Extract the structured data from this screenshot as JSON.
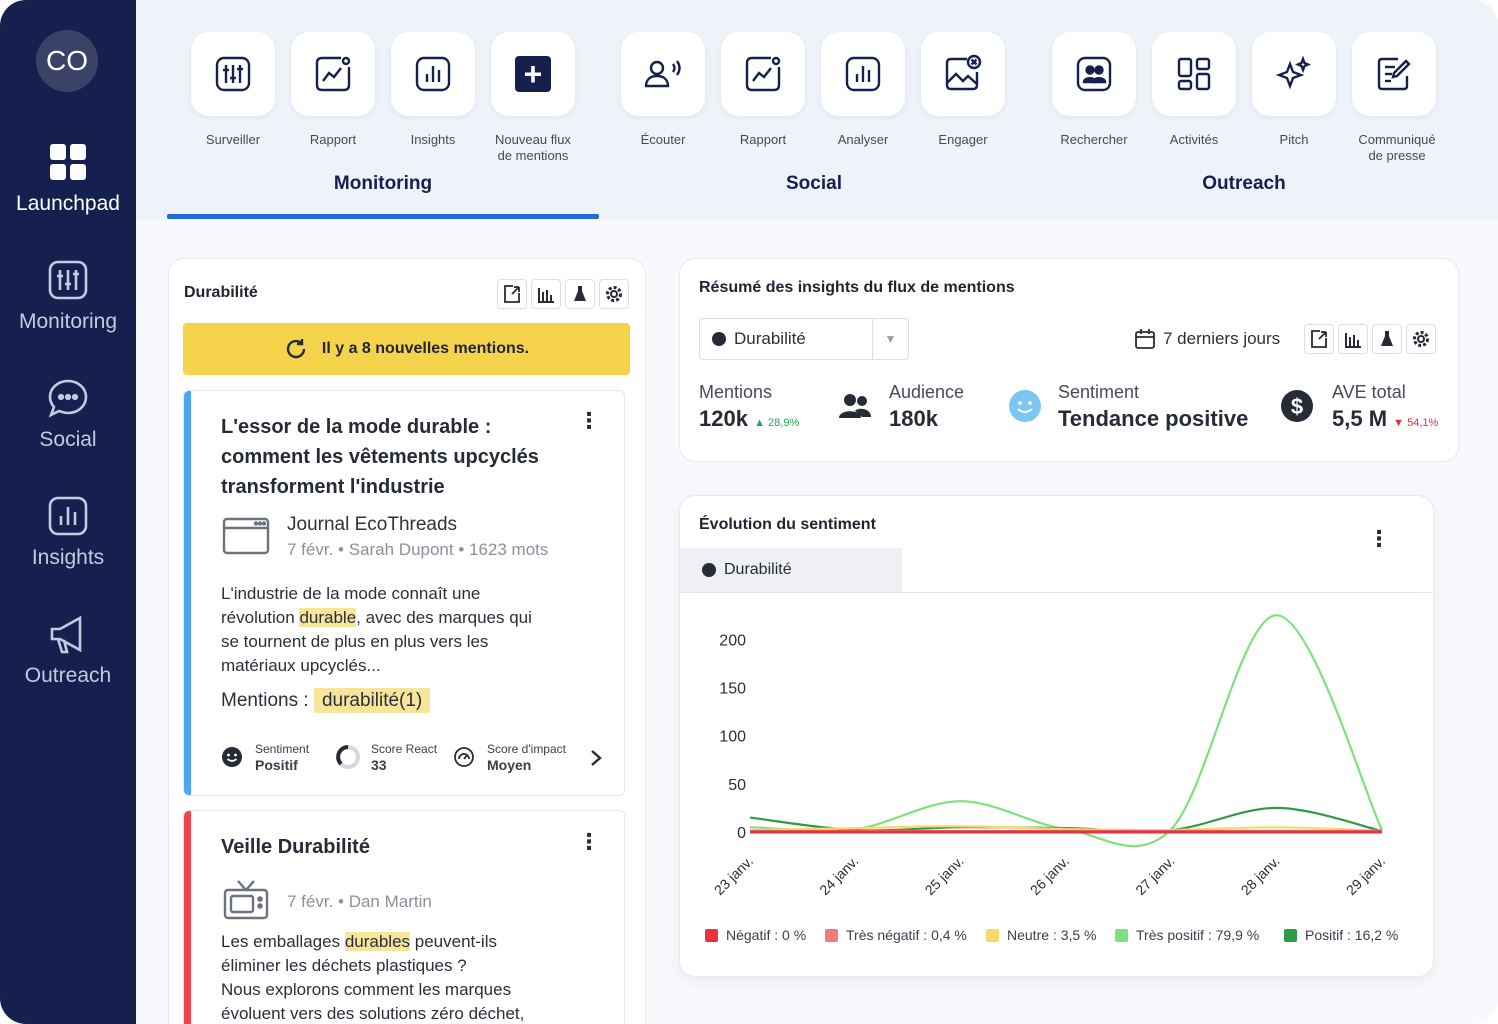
{
  "colors": {
    "sidebar_bg": "#16204e",
    "accent_blue": "#1e6ad9",
    "banner_yellow": "#f5d34a",
    "highlight": "#f8e59a",
    "card_stripe_blue": "#4aa8f0",
    "card_stripe_red": "#f0444c"
  },
  "sidebar": {
    "avatar": "CO",
    "items": [
      {
        "label": "Launchpad",
        "icon": "grid-icon",
        "active": true
      },
      {
        "label": "Monitoring",
        "icon": "monitoring-icon"
      },
      {
        "label": "Social",
        "icon": "chat-bubble-icon"
      },
      {
        "label": "Insights",
        "icon": "bar-chart-icon"
      },
      {
        "label": "Outreach",
        "icon": "megaphone-icon"
      }
    ]
  },
  "topbar": {
    "groups": [
      {
        "label": "Monitoring",
        "active": true
      },
      {
        "label": "Social"
      },
      {
        "label": "Outreach"
      }
    ],
    "tiles": [
      {
        "label": "Surveiller",
        "icon": "monitoring-icon"
      },
      {
        "label": "Rapport",
        "icon": "report-chart-icon"
      },
      {
        "label": "Insights",
        "icon": "bar-chart-icon"
      },
      {
        "label1": "Nouveau flux",
        "label2": "de mentions",
        "icon": "plus-icon"
      },
      {
        "label": "Écouter",
        "icon": "listen-user-icon"
      },
      {
        "label": "Rapport",
        "icon": "report-chart-icon"
      },
      {
        "label": "Analyser",
        "icon": "bar-chart-icon"
      },
      {
        "label": "Engager",
        "icon": "engage-image-icon"
      },
      {
        "label": "Rechercher",
        "icon": "contacts-icon"
      },
      {
        "label": "Activités",
        "icon": "dashboard-icon"
      },
      {
        "label": "Pitch",
        "icon": "sparkle-icon"
      },
      {
        "label1": "Communiqué",
        "label2": "de presse",
        "icon": "press-release-icon"
      }
    ]
  },
  "feed": {
    "title": "Durabilité",
    "banner": "Il y a 8 nouvelles mentions.",
    "cards": [
      {
        "title_lines": [
          "L'essor de la mode durable :",
          "comment les vêtements upcyclés",
          "transforment l'industrie"
        ],
        "source": "Journal EcoThreads",
        "meta": "7 févr. • Sarah Dupont • 1623 mots",
        "text_1": "L'industrie de la mode connaît une",
        "text_2a": "révolution ",
        "text_2hl": "durable",
        "text_2b": ", avec des marques qui",
        "text_3": "se tournent de plus en plus vers les",
        "text_4": "matériaux upcyclés...",
        "mentions_label": "Mentions :",
        "mentions_tag": "durabilité(1)",
        "metrics": [
          {
            "label": "Sentiment",
            "value": "Positif"
          },
          {
            "label": "Score React",
            "value": "33"
          },
          {
            "label": "Score d'impact",
            "value": "Moyen"
          }
        ]
      },
      {
        "title": "Veille Durabilité",
        "meta": "7 févr. • Dan Martin",
        "text_1a": "Les emballages ",
        "text_1hl": "durables",
        "text_1b": " peuvent-ils",
        "text_2": "éliminer les déchets plastiques ?",
        "text_3": "Nous explorons comment les marques",
        "text_4": "évoluent vers des solutions zéro déchet,"
      }
    ]
  },
  "summary": {
    "title": "Résumé des insights du flux de mentions",
    "dropdown_value": "Durabilité",
    "period": "7 derniers jours",
    "stats": [
      {
        "label": "Mentions",
        "value": "120k",
        "delta": "28,9%",
        "trend": "up"
      },
      {
        "label": "Audience",
        "value": "180k"
      },
      {
        "label": "Sentiment",
        "value": "Tendance positive"
      },
      {
        "label": "AVE total",
        "value": "5,5 M",
        "delta": "54,1%",
        "trend": "down"
      }
    ]
  },
  "sentiment_chart": {
    "title": "Évolution du sentiment",
    "series_tab": "Durabilité",
    "legend": [
      {
        "label": "Négatif : 0 %",
        "color": "#e5343c"
      },
      {
        "label": "Très négatif : 0,4 %",
        "color": "#f07c7c"
      },
      {
        "label": "Neutre : 3,5 %",
        "color": "#f7d96a"
      },
      {
        "label": "Très positif : 79,9 %",
        "color": "#7ee07f"
      },
      {
        "label": "Positif : 16,2 %",
        "color": "#2f9a47"
      }
    ]
  },
  "chart_data": {
    "type": "line",
    "title": "Évolution du sentiment",
    "x": [
      "23 janv.",
      "24 janv.",
      "25 janv.",
      "26 janv.",
      "27 janv.",
      "28 janv.",
      "29 janv."
    ],
    "ylim": [
      0,
      220
    ],
    "yticks": [
      0,
      50,
      100,
      150,
      200
    ],
    "series": [
      {
        "name": "Très positif",
        "color": "#7ee07f",
        "values": [
          5,
          3,
          32,
          3,
          3,
          225,
          2
        ]
      },
      {
        "name": "Positif",
        "color": "#2f9a47",
        "values": [
          15,
          2,
          5,
          4,
          2,
          25,
          1
        ]
      },
      {
        "name": "Neutre",
        "color": "#f7d96a",
        "values": [
          2,
          4,
          6,
          3,
          2,
          5,
          1
        ]
      },
      {
        "name": "Très négatif",
        "color": "#f07c7c",
        "values": [
          1,
          1,
          1,
          1,
          1,
          1,
          1
        ]
      },
      {
        "name": "Négatif",
        "color": "#e5343c",
        "values": [
          0,
          0,
          0,
          0,
          0,
          0,
          0
        ]
      }
    ]
  }
}
